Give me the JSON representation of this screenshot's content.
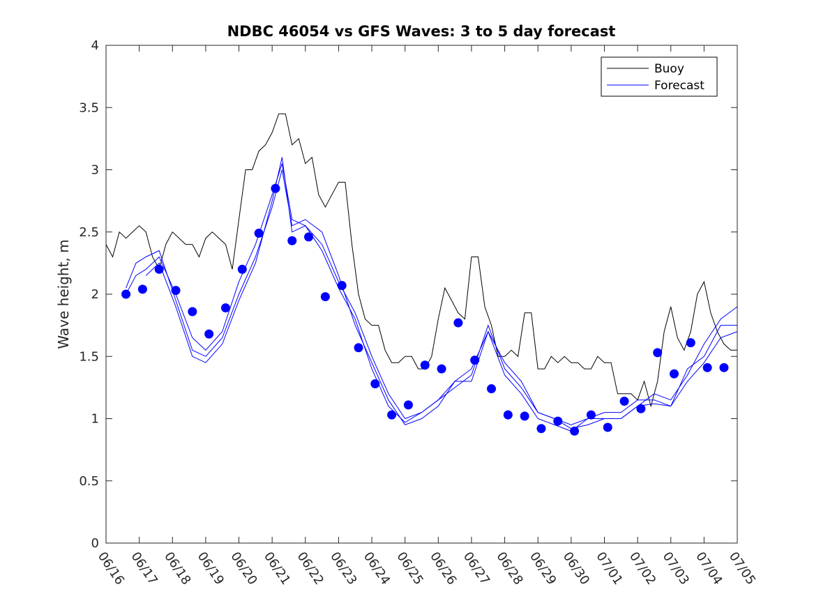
{
  "chart_data": {
    "type": "line",
    "title": "NDBC 46054 vs GFS Waves: 3 to 5 day forecast",
    "xlabel": "",
    "ylabel": "Wave height, m",
    "ylim": [
      0,
      4
    ],
    "yticks": [
      "0",
      "0.5",
      "1",
      "1.5",
      "2",
      "2.5",
      "3",
      "3.5",
      "4"
    ],
    "xlim": [
      0,
      19
    ],
    "xticks": [
      "06/16",
      "06/17",
      "06/18",
      "06/19",
      "06/20",
      "06/21",
      "06/22",
      "06/23",
      "06/24",
      "06/25",
      "06/26",
      "06/27",
      "06/28",
      "06/29",
      "06/30",
      "07/01",
      "07/02",
      "07/03",
      "07/04",
      "07/05"
    ],
    "legend": {
      "position": "top-right",
      "entries": [
        "Buoy",
        "Forecast"
      ]
    },
    "colors": {
      "buoy": "#000000",
      "forecast": "#0000ff",
      "markers": "#0000ff"
    },
    "series": [
      {
        "name": "Buoy",
        "x": [
          0,
          0.2,
          0.4,
          0.6,
          0.8,
          1.0,
          1.2,
          1.4,
          1.6,
          1.8,
          2.0,
          2.2,
          2.4,
          2.6,
          2.8,
          3.0,
          3.2,
          3.4,
          3.6,
          3.8,
          4.0,
          4.2,
          4.4,
          4.6,
          4.8,
          5.0,
          5.2,
          5.4,
          5.6,
          5.8,
          6.0,
          6.2,
          6.4,
          6.6,
          6.8,
          7.0,
          7.2,
          7.4,
          7.6,
          7.8,
          8.0,
          8.2,
          8.4,
          8.6,
          8.8,
          9.0,
          9.2,
          9.4,
          9.6,
          9.8,
          10.0,
          10.2,
          10.4,
          10.6,
          10.8,
          11.0,
          11.2,
          11.4,
          11.6,
          11.8,
          12.0,
          12.2,
          12.4,
          12.6,
          12.8,
          13.0,
          13.2,
          13.4,
          13.6,
          13.8,
          14.0,
          14.2,
          14.4,
          14.6,
          14.8,
          15.0,
          15.2,
          15.4,
          15.6,
          15.8,
          16.0,
          16.2,
          16.4,
          16.6,
          16.8,
          17.0,
          17.2,
          17.4,
          17.6,
          17.8,
          18.0,
          18.2,
          18.4,
          18.6,
          18.8,
          19.0
        ],
        "values": [
          2.4,
          2.3,
          2.5,
          2.45,
          2.5,
          2.55,
          2.5,
          2.3,
          2.2,
          2.4,
          2.5,
          2.45,
          2.4,
          2.4,
          2.3,
          2.45,
          2.5,
          2.45,
          2.4,
          2.2,
          2.6,
          3.0,
          3.0,
          3.15,
          3.2,
          3.3,
          3.45,
          3.45,
          3.2,
          3.25,
          3.05,
          3.1,
          2.8,
          2.7,
          2.8,
          2.9,
          2.9,
          2.4,
          2.0,
          1.8,
          1.75,
          1.75,
          1.55,
          1.45,
          1.45,
          1.5,
          1.5,
          1.4,
          1.4,
          1.5,
          1.8,
          2.05,
          1.95,
          1.85,
          1.8,
          2.3,
          2.3,
          1.9,
          1.75,
          1.5,
          1.5,
          1.55,
          1.5,
          1.85,
          1.85,
          1.4,
          1.4,
          1.5,
          1.45,
          1.5,
          1.45,
          1.45,
          1.4,
          1.4,
          1.5,
          1.45,
          1.45,
          1.2,
          1.2,
          1.2,
          1.15,
          1.3,
          1.1,
          1.3,
          1.7,
          1.9,
          1.65,
          1.55,
          1.7,
          2.0,
          2.1,
          1.85,
          1.7,
          1.6,
          1.55,
          1.55
        ]
      },
      {
        "name": "Forecast",
        "x": [
          0.6,
          0.9,
          1.2,
          1.6,
          2.1,
          2.6,
          3.0,
          3.5,
          4.0,
          4.5,
          5.0,
          5.3,
          5.6,
          6.0,
          6.5,
          7.0,
          7.5,
          8.0,
          8.5,
          9.0,
          9.5,
          10.0,
          10.5,
          11.0,
          11.5,
          12.0,
          12.5,
          13.0,
          13.5,
          14.0,
          14.5,
          15.0,
          15.5,
          16.0,
          16.5,
          17.0,
          17.5,
          18.0,
          18.5,
          19.0
        ],
        "values": [
          2.0,
          2.15,
          2.2,
          2.3,
          2.0,
          1.65,
          1.55,
          1.7,
          2.1,
          2.4,
          2.8,
          3.05,
          2.6,
          2.55,
          2.4,
          2.1,
          1.85,
          1.5,
          1.2,
          1.0,
          1.05,
          1.15,
          1.25,
          1.35,
          1.75,
          1.4,
          1.25,
          1.05,
          1.0,
          0.95,
          1.0,
          1.05,
          1.05,
          1.15,
          1.15,
          1.1,
          1.4,
          1.5,
          1.75,
          1.75
        ]
      },
      {
        "name": "",
        "x": [
          0.6,
          0.9,
          1.2,
          1.6,
          2.1,
          2.6,
          3.0,
          3.5,
          4.0,
          4.5,
          5.0,
          5.3,
          5.6,
          6.0,
          6.5,
          7.0,
          7.5,
          8.0,
          8.5,
          9.0,
          9.5,
          10.0,
          10.5,
          11.0,
          11.5,
          12.0,
          12.5,
          13.0,
          13.5,
          14.0,
          14.5,
          15.0,
          15.5,
          16.0,
          16.5,
          17.0,
          17.5,
          18.0,
          18.5,
          19.0
        ],
        "values": [
          2.05,
          2.25,
          2.3,
          2.35,
          1.95,
          1.55,
          1.5,
          1.65,
          2.0,
          2.3,
          2.7,
          3.0,
          2.55,
          2.6,
          2.5,
          2.15,
          1.75,
          1.45,
          1.15,
          0.95,
          1.0,
          1.1,
          1.3,
          1.4,
          1.7,
          1.35,
          1.2,
          1.0,
          0.95,
          0.9,
          1.0,
          1.0,
          1.0,
          1.1,
          1.2,
          1.15,
          1.35,
          1.6,
          1.8,
          1.9
        ]
      },
      {
        "name": "",
        "x": [
          1.2,
          1.6,
          2.1,
          2.6,
          3.0,
          3.5,
          4.0,
          4.5,
          5.0,
          5.3,
          5.6,
          6.0,
          6.5,
          7.0,
          7.5,
          8.0,
          8.5,
          9.0,
          9.5,
          10.0,
          10.5,
          11.0,
          11.5,
          12.0,
          12.5,
          13.0,
          13.5,
          14.0,
          14.5,
          15.0,
          15.5,
          16.0,
          16.5,
          17.0,
          17.5,
          18.0,
          18.5,
          19.0
        ],
        "values": [
          2.15,
          2.25,
          1.9,
          1.5,
          1.45,
          1.6,
          1.95,
          2.25,
          2.75,
          3.1,
          2.5,
          2.55,
          2.35,
          2.05,
          1.8,
          1.4,
          1.1,
          0.97,
          1.05,
          1.15,
          1.3,
          1.3,
          1.7,
          1.45,
          1.3,
          1.05,
          1.0,
          0.92,
          0.95,
          1.0,
          1.0,
          1.1,
          1.12,
          1.1,
          1.3,
          1.45,
          1.65,
          1.7
        ]
      }
    ],
    "markers": {
      "x": [
        0.6,
        1.1,
        1.6,
        2.1,
        2.6,
        3.1,
        3.6,
        4.1,
        4.6,
        5.1,
        5.6,
        6.1,
        6.6,
        7.1,
        7.6,
        8.1,
        8.6,
        9.1,
        9.6,
        10.1,
        10.6,
        11.1,
        11.6,
        12.1,
        12.6,
        13.1,
        13.6,
        14.1,
        14.6,
        15.1,
        15.6,
        16.1,
        16.6,
        17.1,
        17.6,
        18.1,
        18.6
      ],
      "values": [
        2.0,
        2.04,
        2.2,
        2.03,
        1.86,
        1.68,
        1.89,
        2.2,
        2.49,
        2.85,
        2.43,
        2.46,
        1.98,
        2.07,
        1.57,
        1.28,
        1.03,
        1.11,
        1.43,
        1.4,
        1.77,
        1.47,
        1.24,
        1.03,
        1.02,
        0.92,
        0.98,
        0.9,
        1.03,
        0.93,
        1.14,
        1.08,
        1.53,
        1.36,
        1.61,
        1.41,
        1.41
      ]
    }
  }
}
